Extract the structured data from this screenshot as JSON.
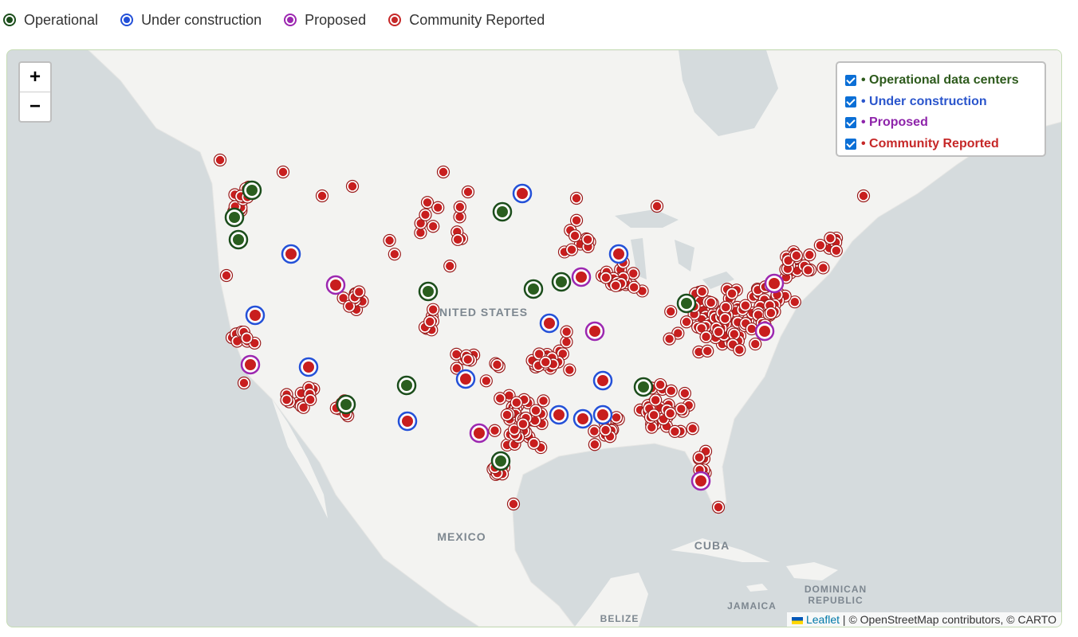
{
  "legend": {
    "items": [
      "Operational",
      "Under construction",
      "Proposed",
      "Community Reported"
    ]
  },
  "map": {
    "zoom_in": "+",
    "zoom_out": "−",
    "layers": [
      "• Operational data centers",
      "• Under construction",
      "• Proposed",
      "• Community Reported"
    ],
    "labels": {
      "united_states": "UNITED STATES",
      "mexico": "MEXICO",
      "cuba": "CUBA",
      "dominican": "DOMINICAN",
      "republic": "REPUBLIC",
      "jamaica": "JAMAICA",
      "belize": "BELIZE"
    },
    "attribution": {
      "link": "Leaflet",
      "text": "| © OpenStreetMap contributors, © CARTO"
    }
  }
}
